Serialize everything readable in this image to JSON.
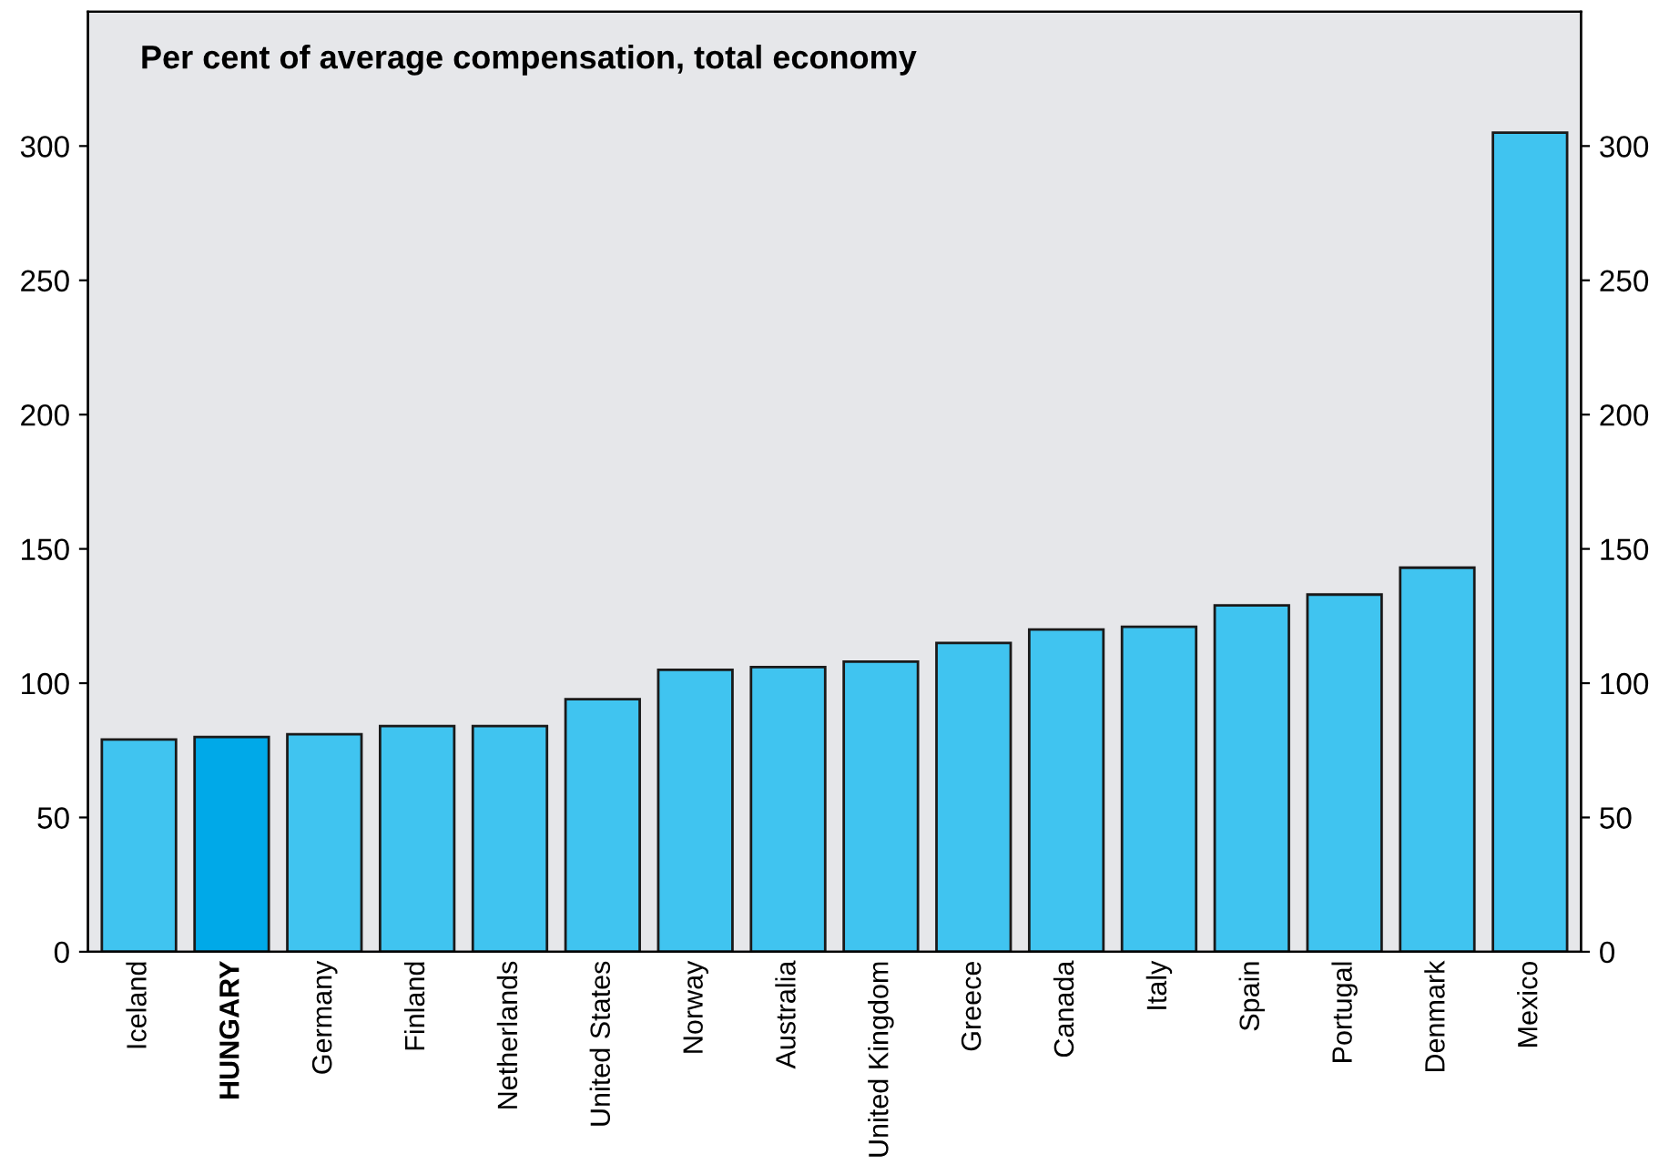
{
  "chart_data": {
    "type": "bar",
    "title": "Per cent of average compensation, total economy",
    "categories": [
      "Iceland",
      "HUNGARY",
      "Germany",
      "Finland",
      "Netherlands",
      "United States",
      "Norway",
      "Australia",
      "United Kingdom",
      "Greece",
      "Canada",
      "Italy",
      "Spain",
      "Portugal",
      "Denmark",
      "Mexico"
    ],
    "values": [
      79,
      80,
      81,
      84,
      84,
      94,
      105,
      106,
      108,
      115,
      120,
      121,
      129,
      133,
      143,
      305
    ],
    "colors": [
      "#40c4f0",
      "#00a9e8",
      "#40c4f0",
      "#40c4f0",
      "#40c4f0",
      "#40c4f0",
      "#40c4f0",
      "#40c4f0",
      "#40c4f0",
      "#40c4f0",
      "#40c4f0",
      "#40c4f0",
      "#40c4f0",
      "#40c4f0",
      "#40c4f0",
      "#40c4f0"
    ],
    "ylim": [
      0,
      350
    ],
    "yticks": [
      0,
      50,
      100,
      150,
      200,
      250,
      300
    ],
    "y2lim": [
      0,
      350
    ],
    "y2ticks": [
      0,
      50,
      100,
      150,
      200,
      250,
      300
    ],
    "grid": false,
    "legend": false
  }
}
